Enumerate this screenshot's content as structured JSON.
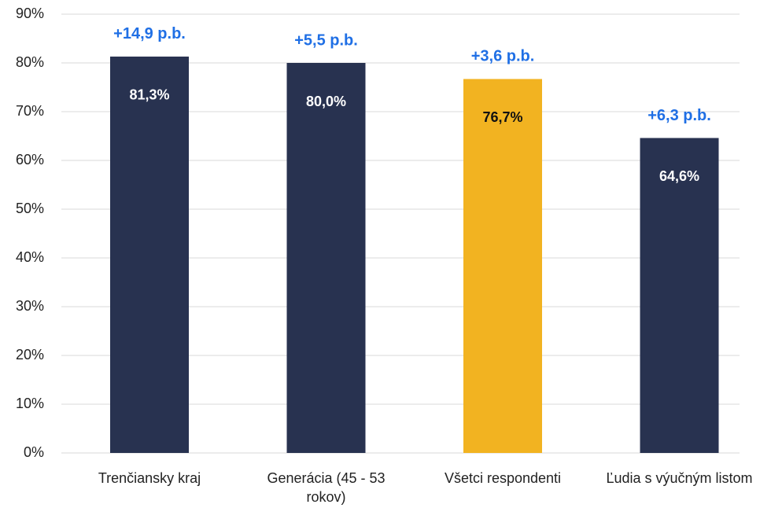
{
  "chart_data": {
    "type": "bar",
    "categories": [
      "Trenčiansky kraj",
      "Generácia (45 - 53 rokov)",
      "Všetci respondenti",
      "Ľudia s výučným listom"
    ],
    "values": [
      81.3,
      80.0,
      76.7,
      64.6
    ],
    "value_labels": [
      "81,3%",
      "80,0%",
      "76,7%",
      "64,6%"
    ],
    "annotations": [
      "+14,9 p.b.",
      "+5,5 p.b.",
      "+3,6 p.b.",
      "+6,3 p.b."
    ],
    "colors": [
      "#283250",
      "#283250",
      "#f2b321",
      "#283250"
    ],
    "value_label_colors": [
      "#ffffff",
      "#ffffff",
      "#111111",
      "#ffffff"
    ],
    "annotation_color": "#1f6fe5",
    "ylim": [
      0,
      90
    ],
    "yticks": [
      {
        "value": 0,
        "label": "0%"
      },
      {
        "value": 10,
        "label": "10%"
      },
      {
        "value": 20,
        "label": "20%"
      },
      {
        "value": 30,
        "label": "30%"
      },
      {
        "value": 40,
        "label": "40%"
      },
      {
        "value": 50,
        "label": "50%"
      },
      {
        "value": 60,
        "label": "60%"
      },
      {
        "value": 70,
        "label": "70%"
      },
      {
        "value": 80,
        "label": "80%"
      },
      {
        "value": 90,
        "label": "90%"
      }
    ],
    "grid": true
  }
}
